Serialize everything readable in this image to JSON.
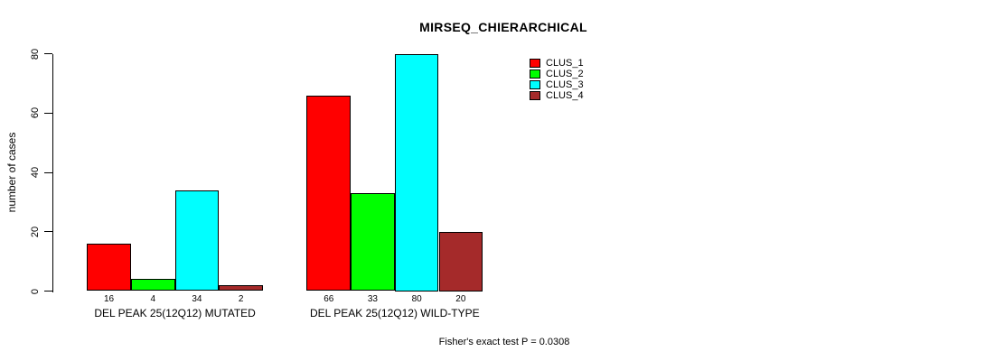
{
  "chart_data": {
    "type": "bar",
    "title": "MIRSEQ_CHIERARCHICAL",
    "ylabel": "number of cases",
    "ylim": [
      0,
      80
    ],
    "yticks": [
      0,
      20,
      40,
      60,
      80
    ],
    "grid": false,
    "legend_position": "top-right",
    "show_value_labels": true,
    "categories": [
      "DEL PEAK 25(12Q12) MUTATED",
      "DEL PEAK 25(12Q12) WILD-TYPE"
    ],
    "series": [
      {
        "name": "CLUS_1",
        "color": "#FF0000",
        "values": [
          16,
          66
        ]
      },
      {
        "name": "CLUS_2",
        "color": "#00FF00",
        "values": [
          4,
          33
        ]
      },
      {
        "name": "CLUS_3",
        "color": "#00FFFF",
        "values": [
          34,
          80
        ]
      },
      {
        "name": "CLUS_4",
        "color": "#A52A2A",
        "values": [
          2,
          20
        ]
      }
    ],
    "annotation": "Fisher's exact test P = 0.0308"
  },
  "colors": {
    "background": "#FFFFFF",
    "axis": "#000000",
    "text": "#000000"
  }
}
